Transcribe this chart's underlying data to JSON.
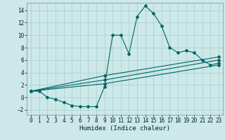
{
  "bg_color": "#cce8e8",
  "grid_color": "#aacccc",
  "line_color": "#006666",
  "xlabel": "Humidex (Indice chaleur)",
  "xlim": [
    -0.5,
    23.5
  ],
  "ylim": [
    -2.8,
    15.2
  ],
  "xticks": [
    0,
    1,
    2,
    3,
    4,
    5,
    6,
    7,
    8,
    9,
    10,
    11,
    12,
    13,
    14,
    15,
    16,
    17,
    18,
    19,
    20,
    21,
    22,
    23
  ],
  "yticks": [
    -2,
    0,
    2,
    4,
    6,
    8,
    10,
    12,
    14
  ],
  "curve1_x": [
    0,
    1,
    2,
    3,
    4,
    5,
    6,
    7,
    8,
    9,
    10,
    11,
    12,
    13,
    14,
    15,
    16,
    17,
    18,
    19,
    20,
    21,
    22,
    23
  ],
  "curve1_y": [
    1.0,
    1.0,
    0.0,
    -0.3,
    -0.8,
    -1.3,
    -1.5,
    -1.5,
    -1.5,
    1.7,
    10.0,
    10.0,
    7.0,
    13.0,
    14.7,
    13.5,
    11.5,
    8.0,
    7.2,
    7.5,
    7.2,
    6.0,
    5.2,
    5.5
  ],
  "curve2_x": [
    0,
    9,
    23
  ],
  "curve2_y": [
    1.0,
    3.5,
    6.5
  ],
  "curve3_x": [
    0,
    9,
    23
  ],
  "curve3_y": [
    1.0,
    2.8,
    6.0
  ],
  "curve4_x": [
    0,
    9,
    23
  ],
  "curve4_y": [
    1.0,
    2.2,
    5.2
  ],
  "markersize": 2.0,
  "linewidth": 0.8,
  "xlabel_fontsize": 6.5,
  "tick_fontsize": 5.5
}
